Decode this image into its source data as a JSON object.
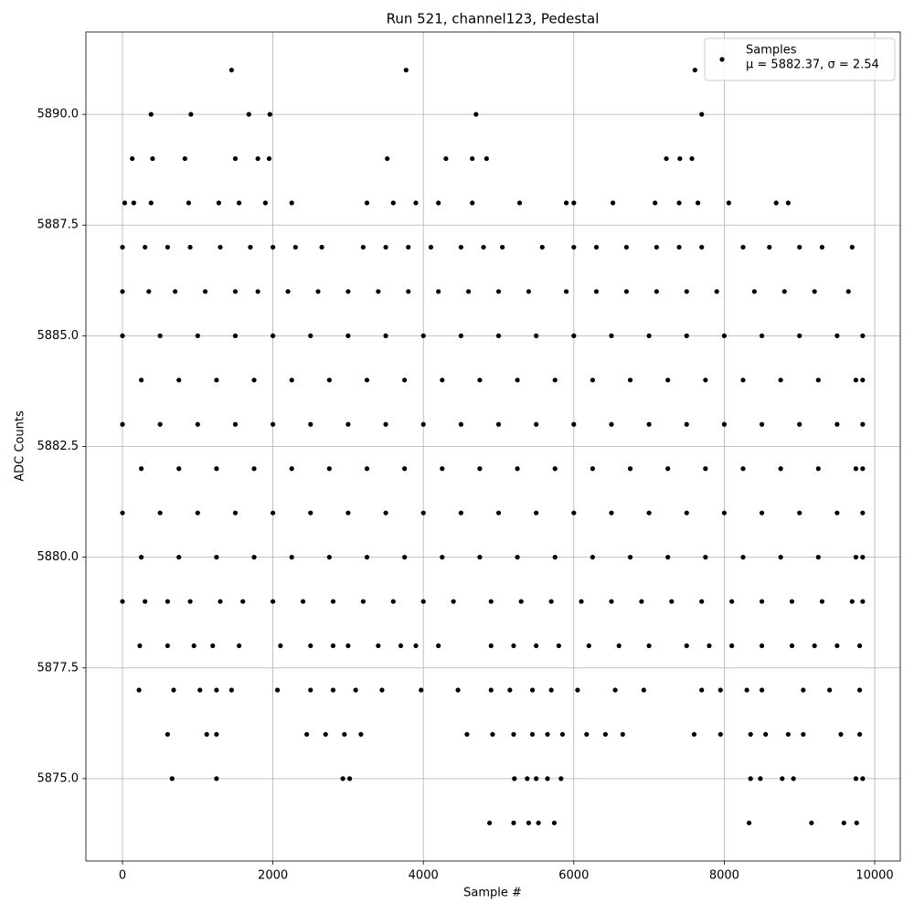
{
  "chart_data": {
    "type": "scatter",
    "title": "Run 521, channel123, Pedestal",
    "xlabel": "Sample #",
    "ylabel": "ADC Counts",
    "xlim": [
      -486,
      10340
    ],
    "ylim": [
      5873.14,
      5891.86
    ],
    "xticks": [
      0,
      2000,
      4000,
      6000,
      8000,
      10000
    ],
    "yticks": [
      {
        "value": 5875,
        "label": "5875.0"
      },
      {
        "value": 5877.5,
        "label": "5877.5"
      },
      {
        "value": 5880,
        "label": "5880.0"
      },
      {
        "value": 5882.5,
        "label": "5882.5"
      },
      {
        "value": 5885,
        "label": "5885.0"
      },
      {
        "value": 5887.5,
        "label": "5887.5"
      },
      {
        "value": 5890,
        "label": "5890.0"
      }
    ],
    "grid": true,
    "legend": "upper right",
    "series": [
      {
        "name": "Samples",
        "legend_note": "μ = 5882.37, σ = 2.54",
        "color": "#000000",
        "x": [
          1450,
          3770,
          7610,
          380,
          910,
          1680,
          1960,
          4700,
          7700,
          130,
          400,
          830,
          1500,
          1800,
          1950,
          3520,
          4300,
          4650,
          4840,
          7230,
          7410,
          7570,
          30,
          150,
          380,
          880,
          1280,
          1550,
          1900,
          2250,
          3250,
          3600,
          3900,
          4200,
          4650,
          5280,
          5900,
          6000,
          6520,
          7080,
          7400,
          7650,
          8060,
          8690,
          8850,
          0,
          300,
          600,
          900,
          1300,
          1700,
          2000,
          2300,
          2650,
          3200,
          3500,
          3800,
          4100,
          4500,
          4800,
          5050,
          5580,
          6000,
          6300,
          6700,
          7100,
          7400,
          7700,
          8250,
          8600,
          9000,
          9300,
          9700,
          0,
          350,
          700,
          1100,
          1500,
          1800,
          2200,
          2600,
          3000,
          3400,
          3800,
          4200,
          4600,
          5000,
          5400,
          5900,
          6300,
          6700,
          7100,
          7500,
          7900,
          8400,
          8800,
          9200,
          9650,
          0,
          500,
          1000,
          1500,
          2000,
          2500,
          3000,
          3500,
          4000,
          4500,
          5000,
          5500,
          6000,
          6500,
          7000,
          7500,
          8000,
          8500,
          9000,
          9500,
          9840,
          250,
          750,
          1250,
          1750,
          2250,
          2750,
          3250,
          3750,
          4250,
          4750,
          5250,
          5750,
          6250,
          6750,
          7250,
          7750,
          8250,
          8750,
          9250,
          9750,
          9840,
          0,
          500,
          1000,
          1500,
          2000,
          2500,
          3000,
          3500,
          4000,
          4500,
          5000,
          5500,
          6000,
          6500,
          7000,
          7500,
          8000,
          8500,
          9000,
          9500,
          9840,
          250,
          750,
          1250,
          1750,
          2250,
          2750,
          3250,
          3750,
          4250,
          4750,
          5250,
          5750,
          6250,
          6750,
          7250,
          7750,
          8250,
          8750,
          9250,
          9750,
          9840,
          0,
          500,
          1000,
          1500,
          2000,
          2500,
          3000,
          3500,
          4000,
          4500,
          5000,
          5500,
          6000,
          6500,
          7000,
          7500,
          8000,
          8500,
          9000,
          9500,
          9840,
          250,
          750,
          1250,
          1750,
          2250,
          2750,
          3250,
          3750,
          4250,
          4750,
          5250,
          5750,
          6250,
          6750,
          7250,
          7750,
          8250,
          8750,
          9250,
          9750,
          9840,
          0,
          300,
          600,
          900,
          1300,
          1600,
          2000,
          2400,
          2800,
          3200,
          3600,
          4000,
          4400,
          4900,
          5300,
          5700,
          6100,
          6500,
          6900,
          7300,
          7700,
          8100,
          8500,
          8900,
          9300,
          9700,
          9840,
          230,
          600,
          950,
          1200,
          1550,
          2100,
          2500,
          2800,
          3000,
          3400,
          3700,
          3900,
          4200,
          4900,
          5200,
          5500,
          5800,
          6200,
          6600,
          7000,
          7500,
          7800,
          8100,
          8500,
          8900,
          9200,
          9500,
          9800,
          220,
          680,
          1030,
          1250,
          1450,
          2060,
          2500,
          2800,
          3100,
          3450,
          3970,
          4460,
          4900,
          5150,
          5450,
          5700,
          6050,
          6550,
          6930,
          7700,
          7950,
          8300,
          8500,
          9050,
          9400,
          9800,
          600,
          1120,
          1250,
          2450,
          2700,
          2950,
          3170,
          4580,
          4920,
          5200,
          5450,
          5650,
          5850,
          6170,
          6420,
          6650,
          7600,
          7950,
          8350,
          8550,
          8850,
          9050,
          9550,
          9800,
          660,
          1250,
          2930,
          3020,
          5210,
          5380,
          5500,
          5650,
          5830,
          8350,
          8480,
          8770,
          8920,
          9750,
          9840,
          4880,
          5200,
          5400,
          5530,
          5740,
          8330,
          9160,
          9590,
          9760
        ],
        "values": [
          5891,
          5891,
          5891,
          5890,
          5890,
          5890,
          5890,
          5890,
          5890,
          5889,
          5889,
          5889,
          5889,
          5889,
          5889,
          5889,
          5889,
          5889,
          5889,
          5889,
          5889,
          5889,
          5888,
          5888,
          5888,
          5888,
          5888,
          5888,
          5888,
          5888,
          5888,
          5888,
          5888,
          5888,
          5888,
          5888,
          5888,
          5888,
          5888,
          5888,
          5888,
          5888,
          5888,
          5888,
          5888,
          5887,
          5887,
          5887,
          5887,
          5887,
          5887,
          5887,
          5887,
          5887,
          5887,
          5887,
          5887,
          5887,
          5887,
          5887,
          5887,
          5887,
          5887,
          5887,
          5887,
          5887,
          5887,
          5887,
          5887,
          5887,
          5887,
          5887,
          5887,
          5886,
          5886,
          5886,
          5886,
          5886,
          5886,
          5886,
          5886,
          5886,
          5886,
          5886,
          5886,
          5886,
          5886,
          5886,
          5886,
          5886,
          5886,
          5886,
          5886,
          5886,
          5886,
          5886,
          5886,
          5886,
          5885,
          5885,
          5885,
          5885,
          5885,
          5885,
          5885,
          5885,
          5885,
          5885,
          5885,
          5885,
          5885,
          5885,
          5885,
          5885,
          5885,
          5885,
          5885,
          5885,
          5885,
          5884,
          5884,
          5884,
          5884,
          5884,
          5884,
          5884,
          5884,
          5884,
          5884,
          5884,
          5884,
          5884,
          5884,
          5884,
          5884,
          5884,
          5884,
          5884,
          5884,
          5884,
          5883,
          5883,
          5883,
          5883,
          5883,
          5883,
          5883,
          5883,
          5883,
          5883,
          5883,
          5883,
          5883,
          5883,
          5883,
          5883,
          5883,
          5883,
          5883,
          5883,
          5883,
          5882,
          5882,
          5882,
          5882,
          5882,
          5882,
          5882,
          5882,
          5882,
          5882,
          5882,
          5882,
          5882,
          5882,
          5882,
          5882,
          5882,
          5882,
          5882,
          5882,
          5882,
          5881,
          5881,
          5881,
          5881,
          5881,
          5881,
          5881,
          5881,
          5881,
          5881,
          5881,
          5881,
          5881,
          5881,
          5881,
          5881,
          5881,
          5881,
          5881,
          5881,
          5881,
          5880,
          5880,
          5880,
          5880,
          5880,
          5880,
          5880,
          5880,
          5880,
          5880,
          5880,
          5880,
          5880,
          5880,
          5880,
          5880,
          5880,
          5880,
          5880,
          5880,
          5880,
          5879,
          5879,
          5879,
          5879,
          5879,
          5879,
          5879,
          5879,
          5879,
          5879,
          5879,
          5879,
          5879,
          5879,
          5879,
          5879,
          5879,
          5879,
          5879,
          5879,
          5879,
          5879,
          5879,
          5879,
          5879,
          5879,
          5879,
          5878,
          5878,
          5878,
          5878,
          5878,
          5878,
          5878,
          5878,
          5878,
          5878,
          5878,
          5878,
          5878,
          5878,
          5878,
          5878,
          5878,
          5878,
          5878,
          5878,
          5878,
          5878,
          5878,
          5878,
          5878,
          5878,
          5878,
          5878,
          5877,
          5877,
          5877,
          5877,
          5877,
          5877,
          5877,
          5877,
          5877,
          5877,
          5877,
          5877,
          5877,
          5877,
          5877,
          5877,
          5877,
          5877,
          5877,
          5877,
          5877,
          5877,
          5877,
          5877,
          5877,
          5877,
          5876,
          5876,
          5876,
          5876,
          5876,
          5876,
          5876,
          5876,
          5876,
          5876,
          5876,
          5876,
          5876,
          5876,
          5876,
          5876,
          5876,
          5876,
          5876,
          5876,
          5876,
          5876,
          5876,
          5876,
          5875,
          5875,
          5875,
          5875,
          5875,
          5875,
          5875,
          5875,
          5875,
          5875,
          5875,
          5875,
          5875,
          5875,
          5875,
          5874,
          5874,
          5874,
          5874,
          5874,
          5874,
          5874,
          5874,
          5874
        ]
      }
    ]
  }
}
